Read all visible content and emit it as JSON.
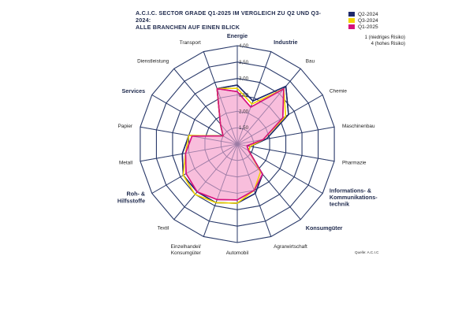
{
  "title_line1": "A.C.I.C. SECTOR GRADE Q1-2025 IM VERGLEICH ZU Q2 UND Q3-2024:",
  "title_line2": "ALLE BRANCHEN AUF EINEN BLICK",
  "legend": [
    {
      "label": "Q2-2024",
      "color": "#1f2a6b"
    },
    {
      "label": "Q3-2024",
      "color": "#f2d500"
    },
    {
      "label": "Q1-2025",
      "color": "#d6127d"
    }
  ],
  "risk_low": "1 (niedriges Risiko)",
  "risk_high": "4 (hohes Risiko)",
  "source": "Quelle: A.C.I.C",
  "colors": {
    "grid": "#2a3a6a",
    "fill": "#f7b3d6"
  },
  "chart_data": {
    "type": "radar",
    "range": [
      1,
      4
    ],
    "ticks": [
      "1,00",
      "1,50",
      "2,00",
      "2,50",
      "3,00",
      "3,50",
      "4,00"
    ],
    "categories": [
      {
        "label": "Energie",
        "bold": true
      },
      {
        "label": "Industrie",
        "bold": true
      },
      {
        "label": "Bau",
        "bold": false
      },
      {
        "label": "Chemie",
        "bold": false
      },
      {
        "label": "Maschinenbau",
        "bold": false
      },
      {
        "label": "Pharmazie",
        "bold": false
      },
      {
        "label": "Informations- & Kommunikations- technik",
        "bold": true
      },
      {
        "label": "Konsumgüter",
        "bold": true
      },
      {
        "label": "Agrarwirtschaft",
        "bold": false
      },
      {
        "label": "Automobil",
        "bold": false
      },
      {
        "label": "Einzelhandel/ Konsumgüter",
        "bold": false
      },
      {
        "label": "Textil",
        "bold": false
      },
      {
        "label": "Roh- & Hilfsstoffe",
        "bold": true
      },
      {
        "label": "Metall",
        "bold": false
      },
      {
        "label": "Papier",
        "bold": false
      },
      {
        "label": "Services",
        "bold": true
      },
      {
        "label": "Dienstleistung",
        "bold": false
      },
      {
        "label": "Transport",
        "bold": false
      }
    ],
    "series": [
      {
        "name": "Q2-2024",
        "values": [
          2.8,
          2.4,
          3.3,
          2.8,
          1.9,
          1.4,
          1.4,
          2.2,
          2.6,
          2.8,
          2.9,
          2.9,
          2.9,
          2.7,
          2.5,
          1.5,
          1.8,
          2.8
        ]
      },
      {
        "name": "Q3-2024",
        "values": [
          2.7,
          2.3,
          3.2,
          2.7,
          1.8,
          1.4,
          1.4,
          2.1,
          2.5,
          2.8,
          2.9,
          3.0,
          2.9,
          2.6,
          2.5,
          1.5,
          1.8,
          2.8
        ]
      },
      {
        "name": "Q1-2025",
        "values": [
          2.6,
          2.2,
          3.2,
          2.6,
          1.8,
          1.3,
          1.4,
          2.2,
          2.5,
          2.7,
          2.8,
          2.9,
          2.8,
          2.6,
          2.4,
          1.5,
          1.8,
          2.8
        ]
      }
    ]
  }
}
